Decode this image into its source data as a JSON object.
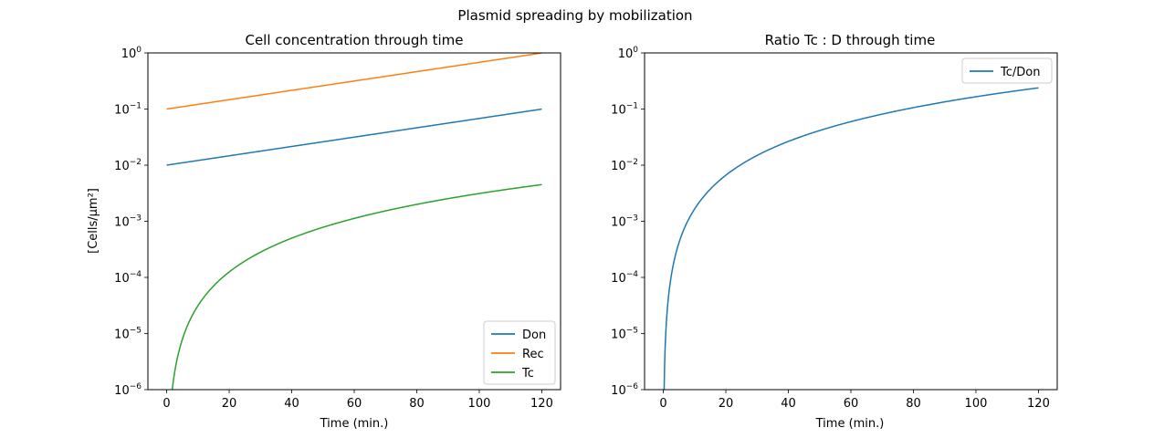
{
  "figure": {
    "suptitle": "Plasmid spreading by mobilization"
  },
  "colors": {
    "don": "#1f77b4",
    "rec": "#ff7f0e",
    "tc": "#2ca02c",
    "tc_don": "#1f77b4"
  },
  "chart_data": [
    {
      "type": "line",
      "title": "Cell concentration through time",
      "xlabel": "Time (min.)",
      "ylabel": "[Cells/μm²]",
      "xlim": [
        -6,
        126
      ],
      "ylim": [
        1e-06,
        1
      ],
      "yscale": "log",
      "xticks": [
        0,
        20,
        40,
        60,
        80,
        100,
        120
      ],
      "yticks_exp": [
        -6,
        -5,
        -4,
        -3,
        -2,
        -1,
        0
      ],
      "grid": false,
      "legend": "lower-right",
      "series": [
        {
          "name": "Don",
          "color": "#1f77b4",
          "model": "exp",
          "a": 0.01,
          "b": 0.01917
        },
        {
          "name": "Rec",
          "color": "#ff7f0e",
          "model": "exp",
          "a": 0.1,
          "b": 0.01917
        },
        {
          "name": "Tc",
          "color": "#2ca02c",
          "model": "power",
          "a": 3.125e-07,
          "p": 2
        }
      ]
    },
    {
      "type": "line",
      "title": "Ratio Tc : D through time",
      "xlabel": "Time (min.)",
      "ylabel": "",
      "xlim": [
        -6,
        126
      ],
      "ylim": [
        1e-06,
        1
      ],
      "yscale": "log",
      "xticks": [
        0,
        20,
        40,
        60,
        80,
        100,
        120
      ],
      "yticks_exp": [
        -6,
        -5,
        -4,
        -3,
        -2,
        -1,
        0
      ],
      "grid": false,
      "legend": "upper-right",
      "series": [
        {
          "name": "Tc/Don",
          "color": "#1f77b4",
          "model": "power",
          "a": 1.656e-05,
          "p": 2
        }
      ]
    }
  ]
}
